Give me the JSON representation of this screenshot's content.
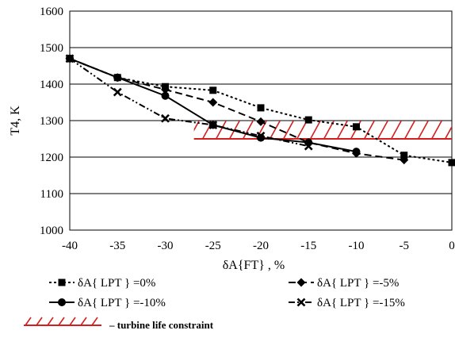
{
  "chart_data": {
    "type": "line",
    "xlabel": "δA{FT} , %",
    "ylabel": "T4, K",
    "xlim": [
      -40,
      0
    ],
    "ylim": [
      1000,
      1600
    ],
    "xticks": [
      -40,
      -35,
      -30,
      -25,
      -20,
      -15,
      -10,
      -5,
      0
    ],
    "yticks": [
      1000,
      1100,
      1200,
      1300,
      1400,
      1500,
      1600
    ],
    "grid": "horizontal",
    "series": [
      {
        "name": "δA{ LPT } =0%",
        "marker": "square",
        "line": "short-dash",
        "x": [
          -40,
          -35,
          -30,
          -25,
          -20,
          -15,
          -10,
          -5,
          0
        ],
        "y": [
          1470,
          1418,
          1393,
          1383,
          1335,
          1302,
          1283,
          1205,
          1185
        ]
      },
      {
        "name": "δA{ LPT } =-5%",
        "marker": "diamond",
        "line": "long-dash",
        "x": [
          -40,
          -35,
          -30,
          -25,
          -20,
          -15,
          -10,
          -5
        ],
        "y": [
          1470,
          1418,
          1385,
          1350,
          1297,
          1240,
          1210,
          1192
        ]
      },
      {
        "name": "δA{ LPT } =-10%",
        "marker": "circle",
        "line": "solid",
        "x": [
          -40,
          -35,
          -30,
          -25,
          -20,
          -15,
          -10
        ],
        "y": [
          1470,
          1418,
          1368,
          1288,
          1253,
          1240,
          1215
        ]
      },
      {
        "name": "δA{ LPT } =-15%",
        "marker": "x",
        "line": "dash-dot-dot",
        "x": [
          -40,
          -35,
          -30,
          -25,
          -20,
          -15
        ],
        "y": [
          1470,
          1378,
          1306,
          1288,
          1258,
          1230
        ]
      }
    ],
    "constraint": {
      "label": "turbine life constraint",
      "x": [
        -27,
        0
      ],
      "y": [
        1250,
        1300
      ],
      "color": "#d21f1f"
    }
  },
  "legend": {
    "items": [
      {
        "text": "δA{ LPT } =0%"
      },
      {
        "text": "δA{ LPT } =-5%"
      },
      {
        "text": "δA{ LPT } =-10%"
      },
      {
        "text": "δA{ LPT } =-15%"
      }
    ],
    "constraint_text": "–   turbine life constraint"
  }
}
